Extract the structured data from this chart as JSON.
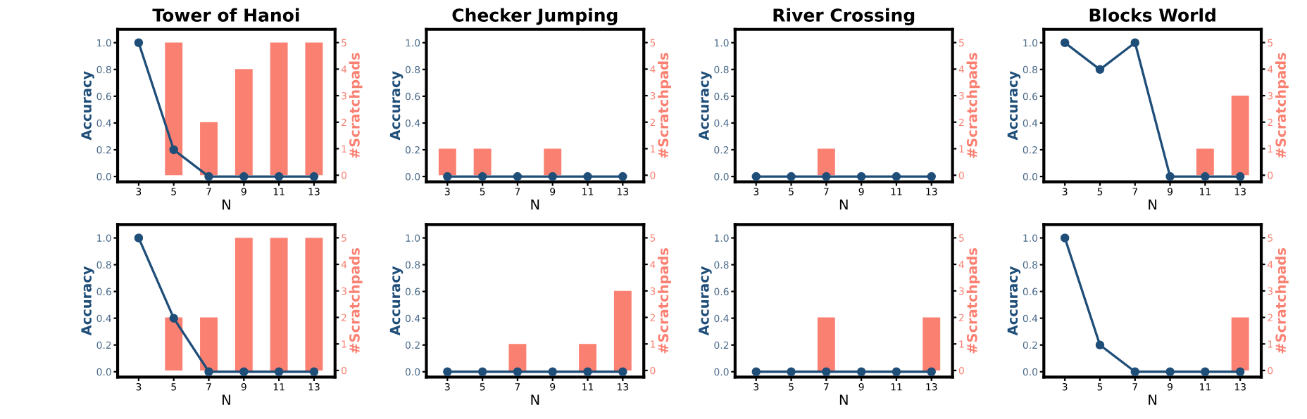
{
  "chart_data": [
    {
      "type": "bar",
      "title": "Tower of Hanoi",
      "xlabel": "N",
      "ylabel": "Accuracy",
      "y2label": "#Scratchpads",
      "categories": [
        "3",
        "5",
        "7",
        "9",
        "11",
        "13"
      ],
      "ylim": [
        -0.04,
        1.1
      ],
      "yticks": [
        {
          "value": 0,
          "label": "0.0"
        },
        {
          "value": 0.2,
          "label": "0.2"
        },
        {
          "value": 0.4,
          "label": "0.4"
        },
        {
          "value": 0.6,
          "label": "0.6"
        },
        {
          "value": 0.8,
          "label": "0.8"
        },
        {
          "value": 1,
          "label": "1.0"
        }
      ],
      "y2lim": [
        -0.25,
        5.5
      ],
      "y2ticks": [
        0,
        1,
        2,
        3,
        4,
        5
      ],
      "grid": false,
      "marker": "circle",
      "line_style": "solid",
      "series": [
        {
          "axis": "y2",
          "color": "#fa8072",
          "values": [
            0,
            5,
            2,
            4,
            5,
            5
          ]
        },
        {
          "type": "line",
          "axis": "y",
          "color": "#1f4e79",
          "values": [
            1,
            0.2,
            0,
            0,
            0,
            0
          ]
        }
      ]
    },
    {
      "type": "bar",
      "title": "Checker Jumping",
      "xlabel": "N",
      "ylabel": "Accuracy",
      "y2label": "#Scratchpads",
      "categories": [
        "3",
        "5",
        "7",
        "9",
        "11",
        "13"
      ],
      "ylim": [
        -0.04,
        1.1
      ],
      "yticks": [
        {
          "value": 0,
          "label": "0.0"
        },
        {
          "value": 0.2,
          "label": "0.2"
        },
        {
          "value": 0.4,
          "label": "0.4"
        },
        {
          "value": 0.6,
          "label": "0.6"
        },
        {
          "value": 0.8,
          "label": "0.8"
        },
        {
          "value": 1,
          "label": "1.0"
        }
      ],
      "y2lim": [
        -0.25,
        5.5
      ],
      "y2ticks": [
        0,
        1,
        2,
        3,
        4,
        5
      ],
      "grid": false,
      "marker": "circle",
      "line_style": "solid",
      "series": [
        {
          "axis": "y2",
          "color": "#fa8072",
          "values": [
            1,
            1,
            0,
            1,
            0,
            0
          ]
        },
        {
          "type": "line",
          "axis": "y",
          "color": "#1f4e79",
          "values": [
            0,
            0,
            0,
            0,
            0,
            0
          ]
        }
      ]
    },
    {
      "type": "bar",
      "title": "River Crossing",
      "xlabel": "N",
      "ylabel": "Accuracy",
      "y2label": "#Scratchpads",
      "categories": [
        "3",
        "5",
        "7",
        "9",
        "11",
        "13"
      ],
      "ylim": [
        -0.04,
        1.1
      ],
      "yticks": [
        {
          "value": 0,
          "label": "0.0"
        },
        {
          "value": 0.2,
          "label": "0.2"
        },
        {
          "value": 0.4,
          "label": "0.4"
        },
        {
          "value": 0.6,
          "label": "0.6"
        },
        {
          "value": 0.8,
          "label": "0.8"
        },
        {
          "value": 1,
          "label": "1.0"
        }
      ],
      "y2lim": [
        -0.25,
        5.5
      ],
      "y2ticks": [
        0,
        1,
        2,
        3,
        4,
        5
      ],
      "grid": false,
      "marker": "circle",
      "line_style": "solid",
      "series": [
        {
          "axis": "y2",
          "color": "#fa8072",
          "values": [
            0,
            0,
            1,
            0,
            0,
            0
          ]
        },
        {
          "type": "line",
          "axis": "y",
          "color": "#1f4e79",
          "values": [
            0,
            0,
            0,
            0,
            0,
            0
          ]
        }
      ]
    },
    {
      "type": "bar",
      "title": "Blocks World",
      "xlabel": "N",
      "ylabel": "Accuracy",
      "y2label": "#Scratchpads",
      "categories": [
        "3",
        "5",
        "7",
        "9",
        "11",
        "13"
      ],
      "ylim": [
        -0.04,
        1.1
      ],
      "yticks": [
        {
          "value": 0,
          "label": "0.0"
        },
        {
          "value": 0.2,
          "label": "0.2"
        },
        {
          "value": 0.4,
          "label": "0.4"
        },
        {
          "value": 0.6,
          "label": "0.6"
        },
        {
          "value": 0.8,
          "label": "0.8"
        },
        {
          "value": 1,
          "label": "1.0"
        }
      ],
      "y2lim": [
        -0.25,
        5.5
      ],
      "y2ticks": [
        0,
        1,
        2,
        3,
        4,
        5
      ],
      "grid": false,
      "marker": "circle",
      "line_style": "solid",
      "series": [
        {
          "axis": "y2",
          "color": "#fa8072",
          "values": [
            0,
            0,
            0,
            0,
            1,
            3
          ]
        },
        {
          "type": "line",
          "axis": "y",
          "color": "#1f4e79",
          "values": [
            1,
            0.8,
            1,
            0,
            0,
            0
          ]
        }
      ]
    },
    {
      "type": "bar",
      "xlabel": "N",
      "ylabel": "Accuracy",
      "y2label": "#Scratchpads",
      "categories": [
        "3",
        "5",
        "7",
        "9",
        "11",
        "13"
      ],
      "ylim": [
        -0.04,
        1.1
      ],
      "yticks": [
        {
          "value": 0,
          "label": "0.0"
        },
        {
          "value": 0.2,
          "label": "0.2"
        },
        {
          "value": 0.4,
          "label": "0.4"
        },
        {
          "value": 0.6,
          "label": "0.6"
        },
        {
          "value": 0.8,
          "label": "0.8"
        },
        {
          "value": 1,
          "label": "1.0"
        }
      ],
      "y2lim": [
        -0.25,
        5.5
      ],
      "y2ticks": [
        0,
        1,
        2,
        3,
        4,
        5
      ],
      "grid": false,
      "marker": "circle",
      "line_style": "solid",
      "series": [
        {
          "axis": "y2",
          "color": "#fa8072",
          "values": [
            0,
            2,
            2,
            5,
            5,
            5
          ]
        },
        {
          "type": "line",
          "axis": "y",
          "color": "#1f4e79",
          "values": [
            1,
            0.4,
            0,
            0,
            0,
            0
          ]
        }
      ]
    },
    {
      "type": "bar",
      "xlabel": "N",
      "ylabel": "Accuracy",
      "y2label": "#Scratchpads",
      "categories": [
        "3",
        "5",
        "7",
        "9",
        "11",
        "13"
      ],
      "ylim": [
        -0.04,
        1.1
      ],
      "yticks": [
        {
          "value": 0,
          "label": "0.0"
        },
        {
          "value": 0.2,
          "label": "0.2"
        },
        {
          "value": 0.4,
          "label": "0.4"
        },
        {
          "value": 0.6,
          "label": "0.6"
        },
        {
          "value": 0.8,
          "label": "0.8"
        },
        {
          "value": 1,
          "label": "1.0"
        }
      ],
      "y2lim": [
        -0.25,
        5.5
      ],
      "y2ticks": [
        0,
        1,
        2,
        3,
        4,
        5
      ],
      "grid": false,
      "marker": "circle",
      "line_style": "solid",
      "series": [
        {
          "axis": "y2",
          "color": "#fa8072",
          "values": [
            0,
            0,
            1,
            0,
            1,
            3
          ]
        },
        {
          "type": "line",
          "axis": "y",
          "color": "#1f4e79",
          "values": [
            0,
            0,
            0,
            0,
            0,
            0
          ]
        }
      ]
    },
    {
      "type": "bar",
      "xlabel": "N",
      "ylabel": "Accuracy",
      "y2label": "#Scratchpads",
      "categories": [
        "3",
        "5",
        "7",
        "9",
        "11",
        "13"
      ],
      "ylim": [
        -0.04,
        1.1
      ],
      "yticks": [
        {
          "value": 0,
          "label": "0.0"
        },
        {
          "value": 0.2,
          "label": "0.2"
        },
        {
          "value": 0.4,
          "label": "0.4"
        },
        {
          "value": 0.6,
          "label": "0.6"
        },
        {
          "value": 0.8,
          "label": "0.8"
        },
        {
          "value": 1,
          "label": "1.0"
        }
      ],
      "y2lim": [
        -0.25,
        5.5
      ],
      "y2ticks": [
        0,
        1,
        2,
        3,
        4,
        5
      ],
      "grid": false,
      "marker": "circle",
      "line_style": "solid",
      "series": [
        {
          "axis": "y2",
          "color": "#fa8072",
          "values": [
            0,
            0,
            2,
            0,
            0,
            2
          ]
        },
        {
          "type": "line",
          "axis": "y",
          "color": "#1f4e79",
          "values": [
            0,
            0,
            0,
            0,
            0,
            0
          ]
        }
      ]
    },
    {
      "type": "bar",
      "xlabel": "N",
      "ylabel": "Accuracy",
      "y2label": "#Scratchpads",
      "categories": [
        "3",
        "5",
        "7",
        "9",
        "11",
        "13"
      ],
      "ylim": [
        -0.04,
        1.1
      ],
      "yticks": [
        {
          "value": 0,
          "label": "0.0"
        },
        {
          "value": 0.2,
          "label": "0.2"
        },
        {
          "value": 0.4,
          "label": "0.4"
        },
        {
          "value": 0.6,
          "label": "0.6"
        },
        {
          "value": 0.8,
          "label": "0.8"
        },
        {
          "value": 1,
          "label": "1.0"
        }
      ],
      "y2lim": [
        -0.25,
        5.5
      ],
      "y2ticks": [
        0,
        1,
        2,
        3,
        4,
        5
      ],
      "grid": false,
      "marker": "circle",
      "line_style": "solid",
      "series": [
        {
          "axis": "y2",
          "color": "#fa8072",
          "values": [
            0,
            0,
            0,
            0,
            0,
            2
          ]
        },
        {
          "type": "line",
          "axis": "y",
          "color": "#1f4e79",
          "values": [
            1,
            0.2,
            0,
            0,
            0,
            0
          ]
        }
      ]
    }
  ]
}
